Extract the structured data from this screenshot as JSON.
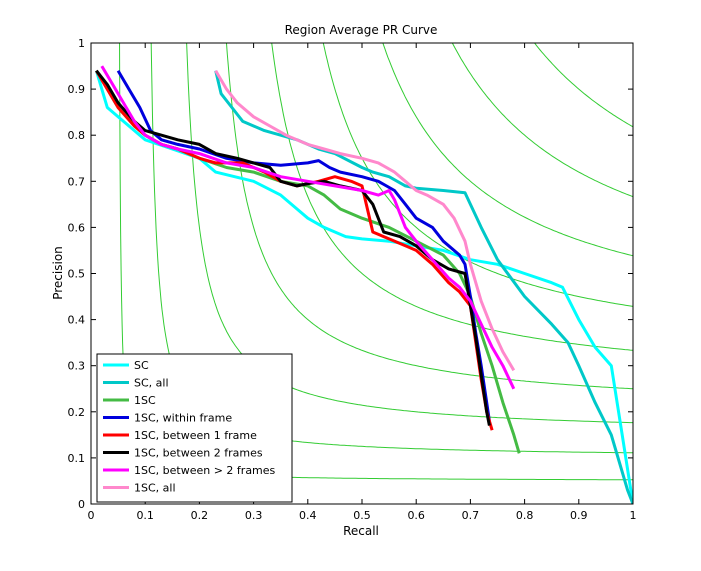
{
  "chart_data": {
    "type": "line",
    "title": "Region Average PR Curve",
    "xlabel": "Recall",
    "ylabel": "Precision",
    "xlim": [
      0,
      1
    ],
    "ylim": [
      0,
      1
    ],
    "xticks": [
      0,
      0.1,
      0.2,
      0.3,
      0.4,
      0.5,
      0.6,
      0.7,
      0.8,
      0.9,
      1
    ],
    "yticks": [
      0,
      0.1,
      0.2,
      0.3,
      0.4,
      0.5,
      0.6,
      0.7,
      0.8,
      0.9,
      1
    ],
    "grid": false,
    "legend_position": "bottom-left",
    "iso_f_color": "#33cc33",
    "iso_f_values": [
      0.1,
      0.2,
      0.3,
      0.4,
      0.5,
      0.6,
      0.7,
      0.8,
      0.9
    ],
    "series": [
      {
        "name": "SC",
        "color": "#00ffff",
        "points": [
          [
            0.01,
            0.94
          ],
          [
            0.02,
            0.9
          ],
          [
            0.03,
            0.86
          ],
          [
            0.05,
            0.84
          ],
          [
            0.08,
            0.81
          ],
          [
            0.1,
            0.79
          ],
          [
            0.15,
            0.77
          ],
          [
            0.2,
            0.75
          ],
          [
            0.23,
            0.72
          ],
          [
            0.3,
            0.7
          ],
          [
            0.35,
            0.67
          ],
          [
            0.38,
            0.64
          ],
          [
            0.4,
            0.62
          ],
          [
            0.43,
            0.6
          ],
          [
            0.47,
            0.58
          ],
          [
            0.5,
            0.575
          ],
          [
            0.55,
            0.57
          ],
          [
            0.6,
            0.56
          ],
          [
            0.65,
            0.55
          ],
          [
            0.7,
            0.53
          ],
          [
            0.75,
            0.52
          ],
          [
            0.8,
            0.5
          ],
          [
            0.85,
            0.48
          ],
          [
            0.87,
            0.47
          ],
          [
            0.9,
            0.4
          ],
          [
            0.93,
            0.34
          ],
          [
            0.96,
            0.3
          ],
          [
            0.98,
            0.15
          ],
          [
            1.0,
            0.0
          ]
        ]
      },
      {
        "name": "SC, all",
        "color": "#00c8c8",
        "points": [
          [
            0.23,
            0.94
          ],
          [
            0.24,
            0.89
          ],
          [
            0.26,
            0.86
          ],
          [
            0.28,
            0.83
          ],
          [
            0.3,
            0.82
          ],
          [
            0.32,
            0.81
          ],
          [
            0.35,
            0.8
          ],
          [
            0.38,
            0.79
          ],
          [
            0.4,
            0.78
          ],
          [
            0.42,
            0.77
          ],
          [
            0.45,
            0.76
          ],
          [
            0.5,
            0.73
          ],
          [
            0.52,
            0.72
          ],
          [
            0.55,
            0.71
          ],
          [
            0.58,
            0.69
          ],
          [
            0.6,
            0.685
          ],
          [
            0.65,
            0.68
          ],
          [
            0.69,
            0.675
          ],
          [
            0.72,
            0.6
          ],
          [
            0.75,
            0.53
          ],
          [
            0.8,
            0.45
          ],
          [
            0.85,
            0.39
          ],
          [
            0.88,
            0.35
          ],
          [
            0.9,
            0.3
          ],
          [
            0.93,
            0.22
          ],
          [
            0.96,
            0.15
          ],
          [
            0.99,
            0.03
          ],
          [
            1.0,
            0.0
          ]
        ]
      },
      {
        "name": "1SC",
        "color": "#44bb44",
        "points": [
          [
            0.01,
            0.94
          ],
          [
            0.03,
            0.9
          ],
          [
            0.05,
            0.86
          ],
          [
            0.08,
            0.82
          ],
          [
            0.1,
            0.8
          ],
          [
            0.13,
            0.78
          ],
          [
            0.16,
            0.77
          ],
          [
            0.2,
            0.75
          ],
          [
            0.25,
            0.73
          ],
          [
            0.3,
            0.72
          ],
          [
            0.35,
            0.7
          ],
          [
            0.4,
            0.69
          ],
          [
            0.43,
            0.67
          ],
          [
            0.46,
            0.64
          ],
          [
            0.5,
            0.62
          ],
          [
            0.55,
            0.6
          ],
          [
            0.6,
            0.57
          ],
          [
            0.65,
            0.54
          ],
          [
            0.68,
            0.5
          ],
          [
            0.7,
            0.45
          ],
          [
            0.72,
            0.37
          ],
          [
            0.74,
            0.3
          ],
          [
            0.76,
            0.22
          ],
          [
            0.78,
            0.15
          ],
          [
            0.79,
            0.11
          ]
        ]
      },
      {
        "name": "1SC, within frame",
        "color": "#0000dd",
        "points": [
          [
            0.05,
            0.94
          ],
          [
            0.07,
            0.9
          ],
          [
            0.09,
            0.86
          ],
          [
            0.11,
            0.81
          ],
          [
            0.13,
            0.79
          ],
          [
            0.16,
            0.78
          ],
          [
            0.2,
            0.77
          ],
          [
            0.25,
            0.75
          ],
          [
            0.3,
            0.74
          ],
          [
            0.35,
            0.735
          ],
          [
            0.4,
            0.74
          ],
          [
            0.42,
            0.745
          ],
          [
            0.44,
            0.73
          ],
          [
            0.46,
            0.72
          ],
          [
            0.5,
            0.71
          ],
          [
            0.53,
            0.7
          ],
          [
            0.56,
            0.68
          ],
          [
            0.58,
            0.65
          ],
          [
            0.6,
            0.62
          ],
          [
            0.63,
            0.6
          ],
          [
            0.65,
            0.57
          ],
          [
            0.68,
            0.54
          ],
          [
            0.69,
            0.52
          ],
          [
            0.7,
            0.45
          ],
          [
            0.71,
            0.37
          ],
          [
            0.72,
            0.3
          ],
          [
            0.73,
            0.22
          ],
          [
            0.735,
            0.18
          ]
        ]
      },
      {
        "name": "1SC, between 1 frame",
        "color": "#ff0000",
        "points": [
          [
            0.01,
            0.94
          ],
          [
            0.03,
            0.9
          ],
          [
            0.05,
            0.86
          ],
          [
            0.08,
            0.82
          ],
          [
            0.1,
            0.8
          ],
          [
            0.13,
            0.78
          ],
          [
            0.16,
            0.77
          ],
          [
            0.2,
            0.75
          ],
          [
            0.23,
            0.74
          ],
          [
            0.28,
            0.74
          ],
          [
            0.32,
            0.72
          ],
          [
            0.35,
            0.7
          ],
          [
            0.38,
            0.69
          ],
          [
            0.42,
            0.7
          ],
          [
            0.45,
            0.71
          ],
          [
            0.48,
            0.7
          ],
          [
            0.5,
            0.69
          ],
          [
            0.52,
            0.59
          ],
          [
            0.55,
            0.575
          ],
          [
            0.58,
            0.56
          ],
          [
            0.6,
            0.55
          ],
          [
            0.63,
            0.52
          ],
          [
            0.66,
            0.48
          ],
          [
            0.68,
            0.46
          ],
          [
            0.7,
            0.43
          ],
          [
            0.71,
            0.35
          ],
          [
            0.72,
            0.27
          ],
          [
            0.73,
            0.2
          ],
          [
            0.74,
            0.16
          ]
        ]
      },
      {
        "name": "1SC, between 2 frames",
        "color": "#000000",
        "points": [
          [
            0.01,
            0.94
          ],
          [
            0.03,
            0.91
          ],
          [
            0.05,
            0.87
          ],
          [
            0.08,
            0.83
          ],
          [
            0.1,
            0.81
          ],
          [
            0.13,
            0.8
          ],
          [
            0.16,
            0.79
          ],
          [
            0.2,
            0.78
          ],
          [
            0.23,
            0.76
          ],
          [
            0.27,
            0.75
          ],
          [
            0.3,
            0.74
          ],
          [
            0.33,
            0.73
          ],
          [
            0.35,
            0.7
          ],
          [
            0.38,
            0.69
          ],
          [
            0.4,
            0.695
          ],
          [
            0.43,
            0.7
          ],
          [
            0.46,
            0.69
          ],
          [
            0.5,
            0.68
          ],
          [
            0.52,
            0.65
          ],
          [
            0.54,
            0.59
          ],
          [
            0.57,
            0.58
          ],
          [
            0.6,
            0.56
          ],
          [
            0.63,
            0.53
          ],
          [
            0.66,
            0.51
          ],
          [
            0.69,
            0.5
          ],
          [
            0.7,
            0.43
          ],
          [
            0.71,
            0.36
          ],
          [
            0.72,
            0.28
          ],
          [
            0.73,
            0.2
          ],
          [
            0.735,
            0.17
          ]
        ]
      },
      {
        "name": "1SC, between > 2 frames",
        "color": "#ff00ff",
        "points": [
          [
            0.02,
            0.95
          ],
          [
            0.04,
            0.91
          ],
          [
            0.06,
            0.87
          ],
          [
            0.08,
            0.83
          ],
          [
            0.1,
            0.8
          ],
          [
            0.13,
            0.78
          ],
          [
            0.16,
            0.77
          ],
          [
            0.2,
            0.76
          ],
          [
            0.25,
            0.74
          ],
          [
            0.3,
            0.73
          ],
          [
            0.35,
            0.71
          ],
          [
            0.4,
            0.7
          ],
          [
            0.45,
            0.69
          ],
          [
            0.5,
            0.68
          ],
          [
            0.53,
            0.67
          ],
          [
            0.55,
            0.68
          ],
          [
            0.56,
            0.66
          ],
          [
            0.58,
            0.6
          ],
          [
            0.6,
            0.57
          ],
          [
            0.63,
            0.53
          ],
          [
            0.66,
            0.49
          ],
          [
            0.68,
            0.47
          ],
          [
            0.7,
            0.44
          ],
          [
            0.72,
            0.39
          ],
          [
            0.74,
            0.34
          ],
          [
            0.76,
            0.3
          ],
          [
            0.78,
            0.25
          ]
        ]
      },
      {
        "name": "1SC, all",
        "color": "#ff88cc",
        "points": [
          [
            0.23,
            0.94
          ],
          [
            0.25,
            0.9
          ],
          [
            0.27,
            0.87
          ],
          [
            0.3,
            0.84
          ],
          [
            0.33,
            0.82
          ],
          [
            0.36,
            0.8
          ],
          [
            0.4,
            0.78
          ],
          [
            0.43,
            0.77
          ],
          [
            0.46,
            0.76
          ],
          [
            0.5,
            0.75
          ],
          [
            0.53,
            0.74
          ],
          [
            0.56,
            0.72
          ],
          [
            0.58,
            0.7
          ],
          [
            0.6,
            0.68
          ],
          [
            0.62,
            0.67
          ],
          [
            0.65,
            0.65
          ],
          [
            0.67,
            0.62
          ],
          [
            0.69,
            0.57
          ],
          [
            0.7,
            0.52
          ],
          [
            0.72,
            0.44
          ],
          [
            0.74,
            0.38
          ],
          [
            0.76,
            0.33
          ],
          [
            0.78,
            0.29
          ]
        ]
      }
    ]
  }
}
